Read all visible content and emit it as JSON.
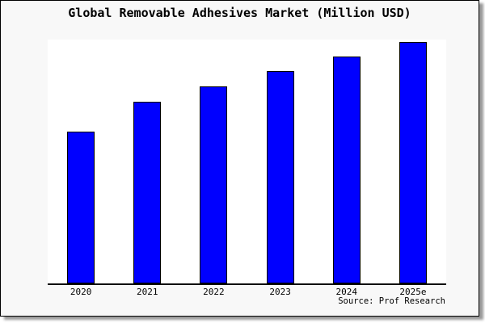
{
  "source_note": "Source: Prof Research",
  "colors": {
    "bar_fill": "#0000FF",
    "bar_border": "#000000",
    "figure_bg": "#F8F8F8",
    "plot_bg": "#FFFFFF",
    "axis": "#000000",
    "text": "#000000",
    "shadow": "#999999"
  },
  "chart_data": {
    "type": "bar",
    "title": "Global Removable Adhesives Market (Million USD)",
    "categories": [
      "2020",
      "2021",
      "2022",
      "2023",
      "2024",
      "2025e"
    ],
    "values": [
      63,
      75.3,
      81.7,
      88,
      94,
      100
    ],
    "value_units": "relative bar height, % of tallest (2025e) bar; figure shows no numeric y-axis",
    "xlabel": "",
    "ylabel": "",
    "ylim": [
      0,
      101
    ],
    "grid": false,
    "legend": false,
    "y_axis_visible": false,
    "source": "Source: Prof Research"
  }
}
